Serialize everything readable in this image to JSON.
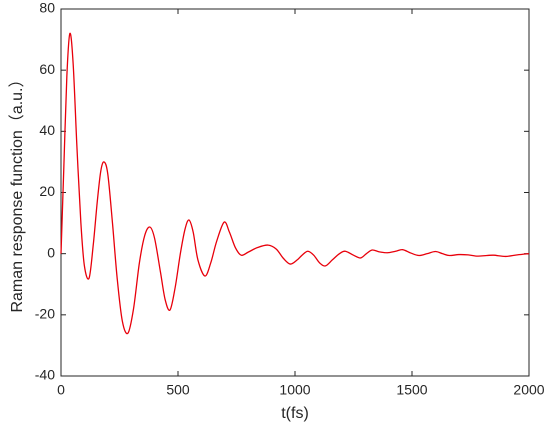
{
  "chart_data": {
    "type": "line",
    "xlabel": "t(fs)",
    "ylabel": "Raman response function（a.u.）",
    "x": [
      0,
      12,
      25,
      38,
      52,
      68,
      85,
      100,
      120,
      138,
      155,
      170,
      184,
      200,
      220,
      240,
      262,
      286,
      310,
      335,
      358,
      380,
      400,
      425,
      445,
      466,
      488,
      510,
      530,
      547,
      565,
      585,
      615,
      640,
      665,
      697,
      720,
      745,
      770,
      800,
      840,
      885,
      920,
      950,
      980,
      1010,
      1030,
      1055,
      1080,
      1105,
      1130,
      1160,
      1190,
      1215,
      1250,
      1280,
      1305,
      1330,
      1360,
      1395,
      1430,
      1460,
      1495,
      1530,
      1565,
      1600,
      1630,
      1660,
      1700,
      1740,
      1780,
      1820,
      1850,
      1900,
      1950,
      2000
    ],
    "series": [
      {
        "color": "#e8000b",
        "values": [
          0,
          28,
          58,
          72,
          62,
          35,
          10,
          -4,
          -8,
          3,
          17,
          27,
          30,
          26,
          10,
          -8,
          -22,
          -26,
          -18,
          -3,
          6,
          8.7,
          5,
          -6,
          -15,
          -18.4,
          -11,
          0,
          8,
          11,
          7,
          -2,
          -7.3,
          -3,
          4,
          10.3,
          7,
          2,
          -0.5,
          0.5,
          2,
          2.8,
          1.5,
          -1.5,
          -3.4,
          -2,
          -0.5,
          0.8,
          -0.5,
          -3,
          -4,
          -2,
          0,
          0.8,
          -0.5,
          -1.4,
          0,
          1.2,
          0.6,
          0.3,
          0.8,
          1.3,
          0.2,
          -0.6,
          0,
          0.7,
          0,
          -0.6,
          -0.3,
          -0.4,
          -0.8,
          -0.6,
          -0.5,
          -0.9,
          -0.4,
          0
        ]
      }
    ],
    "xlim": [
      0,
      2000
    ],
    "xticks": [
      0,
      500,
      1000,
      1500,
      2000
    ],
    "ylim": [
      -40,
      80
    ],
    "yticks": [
      -40,
      -20,
      0,
      20,
      40,
      60,
      80
    ],
    "grid": false
  }
}
